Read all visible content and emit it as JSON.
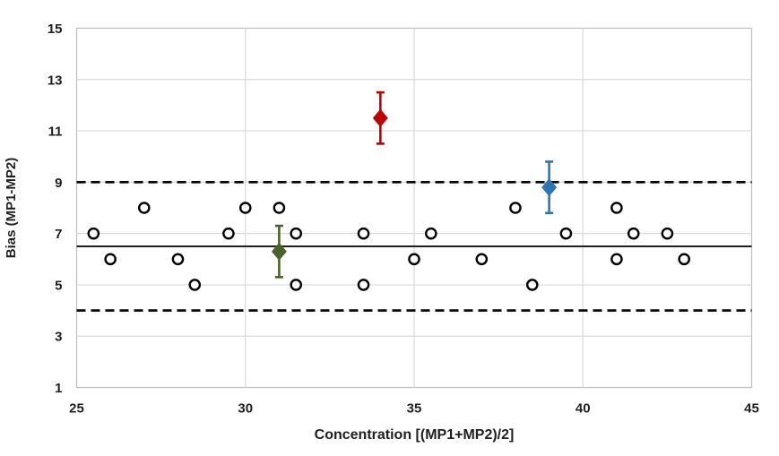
{
  "chart_data": {
    "type": "scatter",
    "title": "",
    "xlabel": "Concentration [(MP1+MP2)/2]",
    "ylabel": "Bias (MP1-MP2)",
    "xlim": [
      25,
      45
    ],
    "ylim": [
      1,
      15
    ],
    "x_ticks": [
      25,
      30,
      35,
      40,
      45
    ],
    "y_ticks": [
      1,
      3,
      5,
      7,
      9,
      11,
      13,
      15
    ],
    "grid": {
      "shown": true,
      "color": "#d9d9d9",
      "border_color": "#bfbfbf",
      "vertical_gridlines_x": [
        30,
        35,
        40
      ],
      "horizontal_gridlines_y": [
        3,
        5,
        7,
        9,
        11,
        13
      ]
    },
    "legend": {
      "shown": false
    },
    "reference_lines": [
      {
        "name": "mean-bias-line",
        "y": 6.5,
        "style": "solid",
        "color": "#000000"
      },
      {
        "name": "upper-limit-line",
        "y": 9,
        "style": "dashed",
        "color": "#000000"
      },
      {
        "name": "lower-limit-line",
        "y": 4,
        "style": "dashed",
        "color": "#000000"
      }
    ],
    "series": [
      {
        "name": "individual-bias-points",
        "marker": "open-circle",
        "color": "#000000",
        "fill": "#ffffff",
        "points": [
          [
            25.5,
            7
          ],
          [
            26,
            6
          ],
          [
            27,
            8
          ],
          [
            28,
            6
          ],
          [
            28.5,
            5
          ],
          [
            29.5,
            7
          ],
          [
            30,
            8
          ],
          [
            31,
            8
          ],
          [
            31.5,
            7
          ],
          [
            31.5,
            5
          ],
          [
            33.5,
            7
          ],
          [
            33.5,
            5
          ],
          [
            35,
            6
          ],
          [
            35.5,
            7
          ],
          [
            37,
            6
          ],
          [
            38,
            8
          ],
          [
            38.5,
            5
          ],
          [
            39.5,
            7
          ],
          [
            41,
            8
          ],
          [
            41,
            6
          ],
          [
            41.5,
            7
          ],
          [
            42.5,
            7
          ],
          [
            43,
            6
          ]
        ]
      },
      {
        "name": "green-mean-point",
        "marker": "diamond",
        "color": "#4a6328",
        "points": [
          [
            31,
            6.3
          ]
        ],
        "error_bars": [
          {
            "low": 5.3,
            "high": 7.3
          }
        ]
      },
      {
        "name": "red-mean-point",
        "marker": "diamond",
        "color": "#c00000",
        "points": [
          [
            34,
            11.5
          ]
        ],
        "error_bars": [
          {
            "low": 10.5,
            "high": 12.5
          }
        ]
      },
      {
        "name": "blue-mean-point",
        "marker": "diamond",
        "color": "#2e75b6",
        "points": [
          [
            39,
            8.8
          ]
        ],
        "error_bars": [
          {
            "low": 7.8,
            "high": 9.8
          }
        ]
      }
    ]
  }
}
